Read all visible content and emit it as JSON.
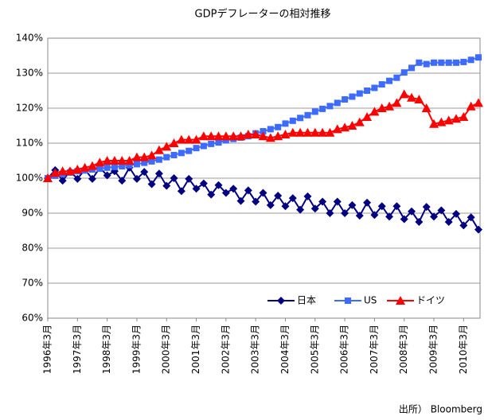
{
  "chart_data": {
    "type": "line",
    "title": "GDPデフレーターの相対推移",
    "source": "出所） Bloomberg",
    "categories": [
      "1996年3月",
      null,
      null,
      null,
      "1997年3月",
      null,
      null,
      null,
      "1998年3月",
      null,
      null,
      null,
      "1999年3月",
      null,
      null,
      null,
      "2000年3月",
      null,
      null,
      null,
      "2001年3月",
      null,
      null,
      null,
      "2002年3月",
      null,
      null,
      null,
      "2003年3月",
      null,
      null,
      null,
      "2004年3月",
      null,
      null,
      null,
      "2005年3月",
      null,
      null,
      null,
      "2006年3月",
      null,
      null,
      null,
      "2007年3月",
      null,
      null,
      null,
      "2008年3月",
      null,
      null,
      null,
      "2009年3月",
      null,
      null,
      null,
      "2010年3月",
      null,
      null
    ],
    "series": [
      {
        "name": "日本",
        "color": "#000080",
        "marker": "diamond",
        "values": [
          100,
          102.3,
          99.3,
          102.0,
          99.8,
          102.5,
          99.8,
          103.0,
          100.8,
          102.0,
          99.3,
          103.0,
          99.8,
          101.8,
          98.3,
          101.3,
          97.8,
          100.0,
          96.3,
          99.8,
          97.0,
          98.5,
          95.3,
          98.0,
          95.8,
          97.0,
          93.5,
          96.5,
          93.3,
          95.8,
          92.3,
          95.0,
          92.0,
          94.3,
          91.0,
          94.8,
          91.3,
          93.3,
          90.0,
          93.3,
          90.0,
          92.3,
          89.3,
          93.0,
          89.5,
          92.0,
          89.0,
          92.0,
          88.3,
          90.5,
          87.5,
          91.8,
          89.0,
          90.8,
          87.5,
          89.8,
          86.5,
          88.8,
          85.3
        ]
      },
      {
        "name": "US",
        "color": "#3d6bff",
        "marker": "square",
        "values": [
          100,
          100.7,
          101.2,
          101.6,
          102.0,
          102.2,
          102.5,
          102.7,
          103.0,
          103.2,
          103.4,
          103.7,
          104.0,
          104.4,
          104.8,
          105.3,
          106.0,
          106.6,
          107.2,
          107.8,
          108.6,
          109.2,
          109.8,
          110.2,
          110.8,
          111.2,
          111.6,
          112.0,
          112.8,
          113.4,
          114.0,
          114.6,
          115.6,
          116.4,
          117.2,
          118.0,
          119.0,
          119.8,
          120.6,
          121.5,
          122.5,
          123.3,
          124.2,
          125.0,
          125.8,
          126.8,
          127.8,
          128.7,
          130.2,
          131.5,
          133.0,
          132.6,
          133.0,
          133.0,
          133.0,
          133.0,
          133.2,
          133.8,
          134.5
        ]
      },
      {
        "name": "ドイツ",
        "color": "#ff0000",
        "marker": "triangle",
        "values": [
          100,
          101.5,
          102,
          102,
          102.5,
          103,
          103.5,
          104.5,
          105,
          105,
          105,
          105,
          106,
          106,
          106.5,
          108,
          109,
          110,
          111,
          111,
          111,
          112,
          112,
          112,
          112,
          112,
          112,
          112.5,
          112.5,
          112,
          111.5,
          112,
          112.5,
          113,
          113,
          113,
          113,
          113,
          113,
          114,
          114.5,
          115,
          116,
          117.5,
          119,
          120,
          120.5,
          121.5,
          124,
          123,
          122.5,
          120,
          115.5,
          116,
          116.5,
          117,
          117.5,
          120.5,
          121.5
        ]
      }
    ],
    "ylim": [
      60,
      140
    ],
    "yticks": [
      {
        "value": 60,
        "label": "60%"
      },
      {
        "value": 70,
        "label": "70%"
      },
      {
        "value": 80,
        "label": "80%"
      },
      {
        "value": 90,
        "label": "90%"
      },
      {
        "value": 100,
        "label": "100%"
      },
      {
        "value": 110,
        "label": "110%"
      },
      {
        "value": 120,
        "label": "120%"
      },
      {
        "value": 130,
        "label": "130%"
      },
      {
        "value": 140,
        "label": "140%"
      }
    ],
    "grid": true
  }
}
